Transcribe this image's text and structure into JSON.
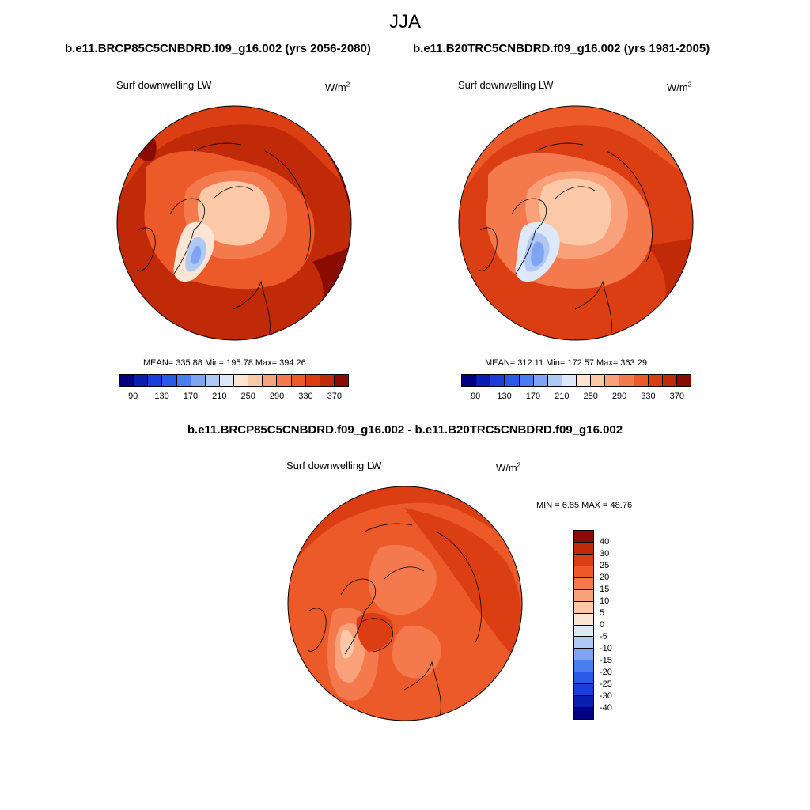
{
  "season": "JJA",
  "panels": {
    "left": {
      "run_title": "b.e11.BRCP85C5CNBDRD.f09_g16.002 (yrs 2056-2080)",
      "variable": "Surf downwelling LW",
      "units_base": "W/m",
      "units_exp": "2",
      "stats_text": "MEAN= 335.88  Min= 195.78  Max= 394.26",
      "mean": 335.88,
      "min": 195.78,
      "max": 394.26
    },
    "right": {
      "run_title": "b.e11.B20TRC5CNBDRD.f09_g16.002 (yrs 1981-2005)",
      "variable": "Surf downwelling LW",
      "units_base": "W/m",
      "units_exp": "2",
      "stats_text": "MEAN= 312.11  Min= 172.57  Max= 363.29",
      "mean": 312.11,
      "min": 172.57,
      "max": 363.29
    },
    "diff": {
      "title": "b.e11.BRCP85C5CNBDRD.f09_g16.002 - b.e11.B20TRC5CNBDRD.f09_g16.002",
      "variable": "Surf downwelling LW",
      "units_base": "W/m",
      "units_exp": "2",
      "stats_text": "MIN =   6.85 MAX =  48.76",
      "min": 6.85,
      "max": 48.76
    }
  },
  "abs_colorbar": {
    "tick_labels": [
      "90",
      "130",
      "170",
      "210",
      "250",
      "290",
      "330",
      "370"
    ],
    "colors": [
      "#000080",
      "#0a1fb0",
      "#1a3fd8",
      "#2a5be8",
      "#4a7df0",
      "#7fa4f2",
      "#b0c8f4",
      "#dde8f8",
      "#fde5d4",
      "#fbc8a8",
      "#f8a17a",
      "#f47a4e",
      "#ec5a2a",
      "#dc3e14",
      "#c02a08",
      "#8a0b02"
    ]
  },
  "diff_colorbar": {
    "tick_labels": [
      "40",
      "30",
      "25",
      "20",
      "15",
      "10",
      "5",
      "0",
      "-5",
      "-10",
      "-15",
      "-20",
      "-25",
      "-30",
      "-40"
    ],
    "colors": [
      "#8a0b02",
      "#c02a08",
      "#dc3e14",
      "#ec5a2a",
      "#f47a4e",
      "#f8a17a",
      "#fbc8a8",
      "#fde5d4",
      "#dde8f8",
      "#b0c8f4",
      "#7fa4f2",
      "#4a7df0",
      "#2a5be8",
      "#1a3fd8",
      "#0a1fb0",
      "#000080"
    ]
  }
}
